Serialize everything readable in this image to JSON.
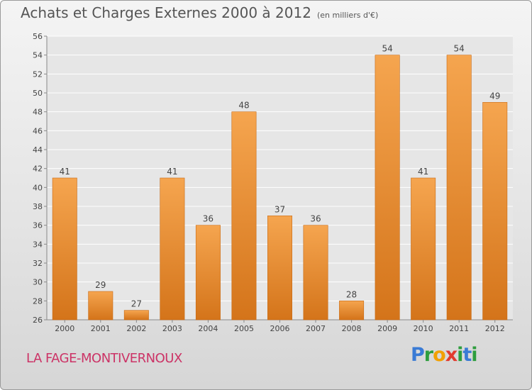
{
  "header": {
    "title": "Achats et Charges Externes 2000 à 2012",
    "subtitle": "(en milliers d'€)"
  },
  "footer": {
    "town": "LA FAGE-MONTIVERNOUX",
    "logo": "Proxiti"
  },
  "colors": {
    "bar_top": "#f5a54f",
    "bar_bottom": "#d4741a",
    "axis_text": "#444444",
    "grid": "#ffffff",
    "town": "#cc3366"
  },
  "chart_data": {
    "type": "bar",
    "title": "Achats et Charges Externes 2000 à 2012",
    "subtitle": "(en milliers d'€)",
    "xlabel": "",
    "ylabel": "",
    "categories": [
      "2000",
      "2001",
      "2002",
      "2003",
      "2004",
      "2005",
      "2006",
      "2007",
      "2008",
      "2009",
      "2010",
      "2011",
      "2012"
    ],
    "values": [
      41,
      29,
      27,
      41,
      36,
      48,
      37,
      36,
      28,
      54,
      41,
      54,
      49
    ],
    "ylim": [
      26,
      56
    ],
    "yticks": [
      26,
      28,
      30,
      32,
      34,
      36,
      38,
      40,
      42,
      44,
      46,
      48,
      50,
      52,
      54,
      56
    ],
    "grid": true,
    "data_labels": true
  }
}
